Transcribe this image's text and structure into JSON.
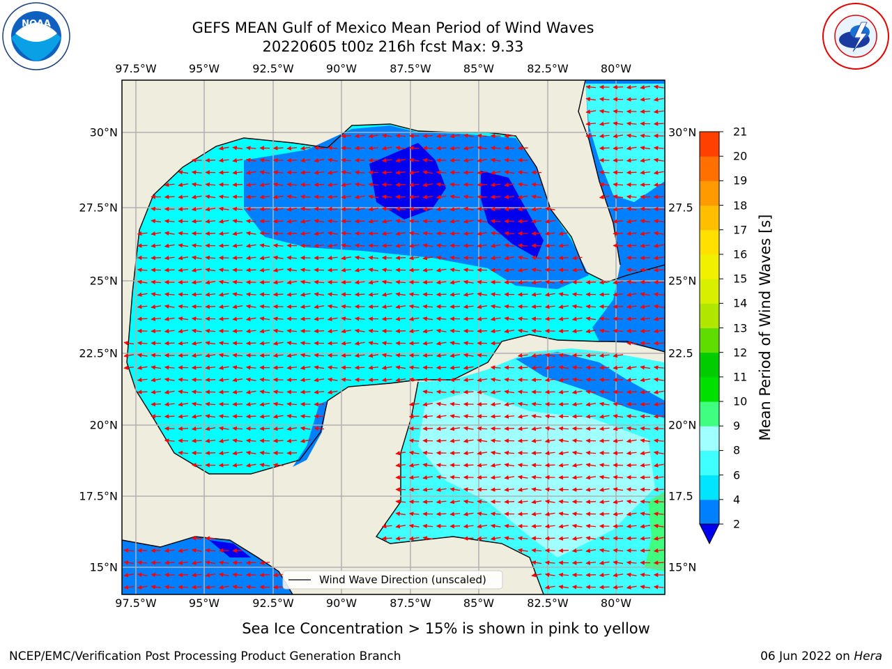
{
  "title_line1": "GEFS MEAN Gulf of Mexico Mean Period of Wind Waves",
  "title_line2": "20220605 t00z 216h fcst   Max: 9.33",
  "lon_ticks": [
    "97.5°W",
    "95°W",
    "92.5°W",
    "90°W",
    "87.5°W",
    "85°W",
    "82.5°W",
    "80°W"
  ],
  "lat_ticks_left": [
    "30°N",
    "27.5°N",
    "25°N",
    "22.5°N",
    "20°N",
    "17.5°N",
    "15°N"
  ],
  "lat_ticks_right": [
    "30°N",
    "27.5",
    "25°N",
    "22.5",
    "20°N",
    "17.5",
    "15°N"
  ],
  "legend": {
    "wave_direction": "Wind Wave Direction (unscaled)"
  },
  "colorbar": {
    "label": "Mean Period of Wind Waves [s]",
    "ticks": [
      "2",
      "4",
      "6",
      "8",
      "9",
      "10",
      "11",
      "12",
      "13",
      "14",
      "15",
      "16",
      "17",
      "18",
      "19",
      "20",
      "21"
    ],
    "colors": [
      "#0080ff",
      "#00e5ff",
      "#40ffff",
      "#a0ffff",
      "#40ff80",
      "#00e000",
      "#00cc00",
      "#60dd00",
      "#b0e600",
      "#d8f000",
      "#f0f000",
      "#ffe000",
      "#ffbf00",
      "#ff9a00",
      "#ff7000",
      "#ff4000",
      "#ff0000"
    ]
  },
  "ice_note": "Sea Ice Concentration > 15% is shown in pink to yellow",
  "footer": {
    "left": "NCEP/EMC/Verification Post Processing Product Generation Branch",
    "date": "06 Jun 2022 on ",
    "host": "Hera"
  },
  "logos": {
    "left": "noaa-logo",
    "right": "nws-logo"
  }
}
